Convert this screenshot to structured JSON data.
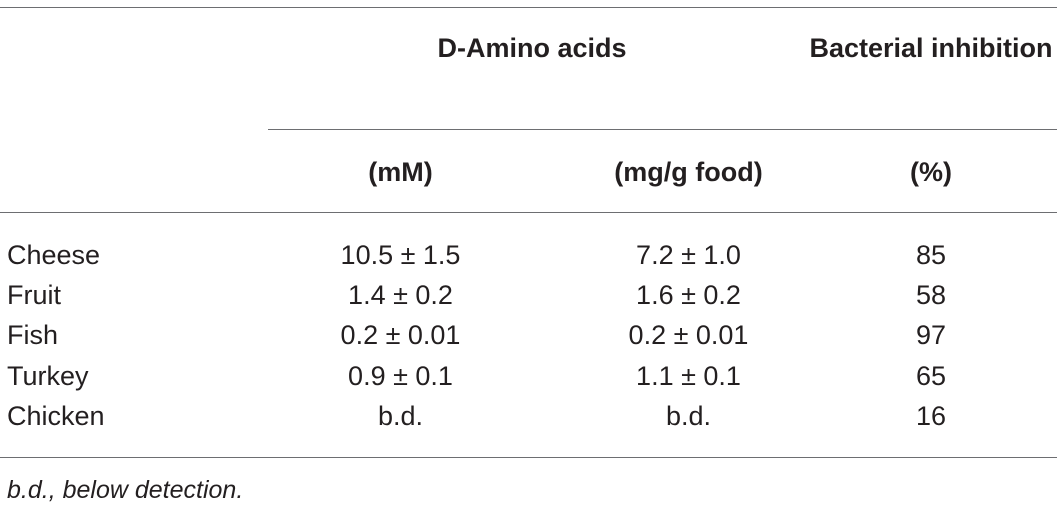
{
  "table": {
    "group_headers": {
      "amino_acids": "D-Amino acids",
      "bacterial_inhibition": "Bacterial inhibition"
    },
    "unit_headers": {
      "mm": "(mM)",
      "mg_per_g": "(mg/g food)",
      "percent": "(%)"
    },
    "rows": [
      {
        "food": "Cheese",
        "mm": "10.5 ± 1.5",
        "mg_per_g": "7.2 ± 1.0",
        "percent": "85"
      },
      {
        "food": "Fruit",
        "mm": "1.4 ± 0.2",
        "mg_per_g": "1.6 ± 0.2",
        "percent": "58"
      },
      {
        "food": "Fish",
        "mm": "0.2 ± 0.01",
        "mg_per_g": "0.2 ± 0.01",
        "percent": "97"
      },
      {
        "food": "Turkey",
        "mm": "0.9 ± 0.1",
        "mg_per_g": "1.1 ± 0.1",
        "percent": "65"
      },
      {
        "food": "Chicken",
        "mm": "b.d.",
        "mg_per_g": "b.d.",
        "percent": "16"
      }
    ],
    "footnote": "b.d., below detection."
  }
}
